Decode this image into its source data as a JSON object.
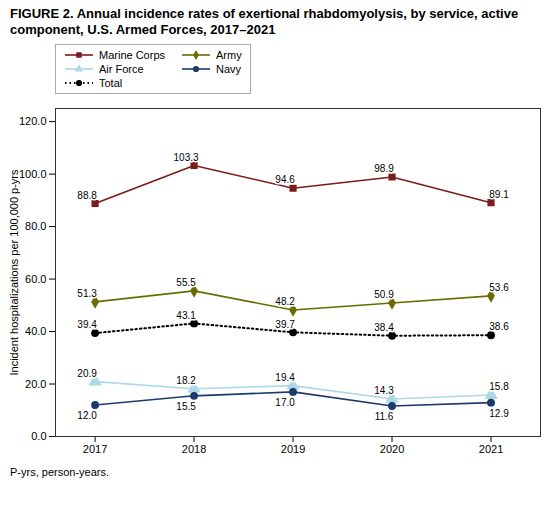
{
  "chart_data": {
    "type": "line",
    "title": "FIGURE 2. Annual incidence rates of exertional rhabdomyolysis, by service, active component, U.S. Armed Forces, 2017–2021",
    "caption": "P-yrs, person-years.",
    "ylabel": "Incident hospitalizations per 100,000 p-yrs",
    "x": [
      2017,
      2018,
      2019,
      2020,
      2021
    ],
    "xlim": [
      2016.6,
      2021.5
    ],
    "xticks": [
      2017,
      2018,
      2019,
      2020,
      2021
    ],
    "ylim": [
      0,
      125
    ],
    "yticks": [
      {
        "value": 0,
        "label": "0.0"
      },
      {
        "value": 20,
        "label": "20.0"
      },
      {
        "value": 40,
        "label": "40.0"
      },
      {
        "value": 60,
        "label": "60.0"
      },
      {
        "value": 80,
        "label": "80.0"
      },
      {
        "value": 100,
        "label": "100.0"
      },
      {
        "value": 120,
        "label": "120.0"
      }
    ],
    "grid": false,
    "legend": "upper left",
    "data_labels": true,
    "series": [
      {
        "name": "Marine Corps",
        "color": "#7B1C1C",
        "marker": "square",
        "line_style": "solid",
        "values": [
          88.8,
          103.3,
          94.6,
          98.9,
          89.1
        ]
      },
      {
        "name": "Army",
        "color": "#6B6B00",
        "marker": "diamond",
        "line_style": "solid",
        "values": [
          51.3,
          55.5,
          48.2,
          50.9,
          53.6
        ]
      },
      {
        "name": "Air Force",
        "color": "#ADD8E6",
        "marker": "triangle",
        "line_style": "solid",
        "values": [
          20.9,
          18.2,
          19.4,
          14.3,
          15.8
        ]
      },
      {
        "name": "Navy",
        "color": "#1C3A6B",
        "marker": "circle",
        "line_style": "solid",
        "values": [
          12.0,
          15.5,
          17.0,
          11.6,
          12.9
        ],
        "value_labels": [
          "12.0",
          "15.5",
          "17.0",
          "11.6",
          "12.9"
        ]
      },
      {
        "name": "Total",
        "color": "#000000",
        "marker": "circle",
        "line_style": "dotted",
        "values": [
          39.4,
          43.1,
          39.7,
          38.4,
          38.6
        ]
      }
    ]
  }
}
